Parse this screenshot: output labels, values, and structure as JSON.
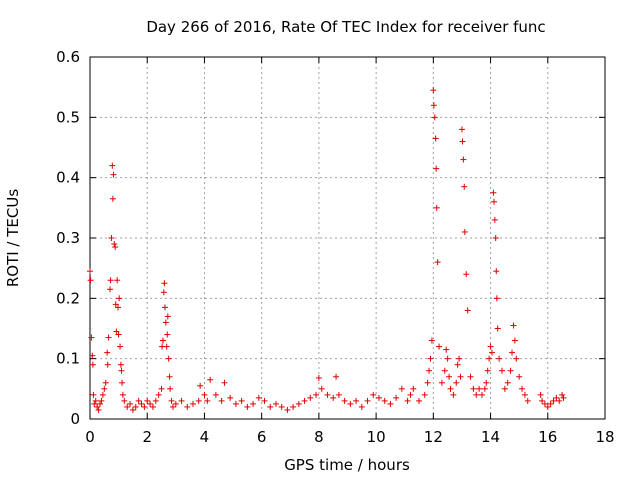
{
  "chart_data": {
    "type": "scatter",
    "title": "Day 266 of 2016, Rate Of TEC Index for receiver func",
    "xlabel": "GPS time / hours",
    "ylabel": "ROTI / TECUs",
    "xlim": [
      0,
      18
    ],
    "ylim": [
      0,
      0.6
    ],
    "xticks": [
      0,
      2,
      4,
      6,
      8,
      10,
      12,
      14,
      16,
      18
    ],
    "xtick_labels": [
      "0",
      "2",
      "4",
      "6",
      "8",
      "10",
      "12",
      "14",
      "16",
      "18"
    ],
    "yticks": [
      0,
      0.1,
      0.2,
      0.3,
      0.4,
      0.5,
      0.6
    ],
    "ytick_labels": [
      "0",
      "0.1",
      "0.2",
      "0.3",
      "0.4",
      "0.5",
      "0.6"
    ],
    "grid": true,
    "marker": "+",
    "color": "#e00000",
    "series": [
      {
        "name": "ROTI",
        "x": [
          0.0,
          0.02,
          0.05,
          0.08,
          0.1,
          0.12,
          0.15,
          0.2,
          0.25,
          0.3,
          0.35,
          0.4,
          0.45,
          0.5,
          0.55,
          0.6,
          0.62,
          0.65,
          0.7,
          0.72,
          0.75,
          0.78,
          0.8,
          0.82,
          0.85,
          0.88,
          0.9,
          0.92,
          0.95,
          0.98,
          1.0,
          1.02,
          1.05,
          1.08,
          1.1,
          1.12,
          1.15,
          1.2,
          1.3,
          1.4,
          1.5,
          1.6,
          1.7,
          1.8,
          1.9,
          2.0,
          2.1,
          2.2,
          2.3,
          2.4,
          2.5,
          2.52,
          2.55,
          2.58,
          2.6,
          2.62,
          2.65,
          2.68,
          2.7,
          2.72,
          2.75,
          2.78,
          2.8,
          2.85,
          2.9,
          3.0,
          3.2,
          3.4,
          3.6,
          3.8,
          3.85,
          4.0,
          4.1,
          4.2,
          4.4,
          4.6,
          4.7,
          4.9,
          5.1,
          5.3,
          5.5,
          5.7,
          5.9,
          6.1,
          6.3,
          6.5,
          6.7,
          6.9,
          7.1,
          7.3,
          7.5,
          7.7,
          7.9,
          8.0,
          8.1,
          8.3,
          8.5,
          8.6,
          8.7,
          8.9,
          9.1,
          9.3,
          9.5,
          9.7,
          9.9,
          10.1,
          10.3,
          10.5,
          10.7,
          10.9,
          11.1,
          11.2,
          11.3,
          11.5,
          11.7,
          11.8,
          11.85,
          11.9,
          11.95,
          12.0,
          12.02,
          12.05,
          12.08,
          12.1,
          12.12,
          12.15,
          12.2,
          12.3,
          12.4,
          12.45,
          12.5,
          12.55,
          12.6,
          12.7,
          12.8,
          12.85,
          12.9,
          12.95,
          13.0,
          13.02,
          13.05,
          13.08,
          13.1,
          13.15,
          13.2,
          13.3,
          13.4,
          13.5,
          13.6,
          13.7,
          13.8,
          13.85,
          13.9,
          13.95,
          14.0,
          14.05,
          14.1,
          14.12,
          14.15,
          14.18,
          14.2,
          14.22,
          14.25,
          14.3,
          14.4,
          14.5,
          14.6,
          14.7,
          14.75,
          14.8,
          14.85,
          14.9,
          15.0,
          15.1,
          15.2,
          15.3,
          15.75,
          15.8,
          15.9,
          16.0,
          16.1,
          16.2,
          16.3,
          16.4,
          16.5,
          16.55
        ],
        "y": [
          0.245,
          0.23,
          0.135,
          0.105,
          0.09,
          0.04,
          0.025,
          0.03,
          0.02,
          0.015,
          0.025,
          0.03,
          0.04,
          0.05,
          0.06,
          0.11,
          0.09,
          0.135,
          0.215,
          0.23,
          0.3,
          0.42,
          0.365,
          0.405,
          0.29,
          0.285,
          0.19,
          0.145,
          0.23,
          0.185,
          0.14,
          0.2,
          0.12,
          0.09,
          0.08,
          0.06,
          0.04,
          0.03,
          0.02,
          0.025,
          0.015,
          0.02,
          0.03,
          0.025,
          0.02,
          0.03,
          0.025,
          0.02,
          0.03,
          0.04,
          0.05,
          0.12,
          0.13,
          0.21,
          0.225,
          0.185,
          0.16,
          0.12,
          0.14,
          0.17,
          0.1,
          0.07,
          0.05,
          0.03,
          0.02,
          0.025,
          0.03,
          0.02,
          0.025,
          0.03,
          0.055,
          0.04,
          0.03,
          0.065,
          0.04,
          0.03,
          0.06,
          0.035,
          0.025,
          0.03,
          0.02,
          0.025,
          0.035,
          0.03,
          0.02,
          0.025,
          0.02,
          0.015,
          0.02,
          0.025,
          0.03,
          0.035,
          0.04,
          0.068,
          0.05,
          0.04,
          0.035,
          0.07,
          0.04,
          0.03,
          0.025,
          0.03,
          0.02,
          0.03,
          0.04,
          0.035,
          0.03,
          0.025,
          0.035,
          0.05,
          0.03,
          0.04,
          0.05,
          0.03,
          0.04,
          0.06,
          0.08,
          0.1,
          0.13,
          0.545,
          0.52,
          0.5,
          0.465,
          0.415,
          0.35,
          0.26,
          0.12,
          0.06,
          0.08,
          0.115,
          0.1,
          0.07,
          0.05,
          0.04,
          0.06,
          0.09,
          0.1,
          0.07,
          0.48,
          0.46,
          0.43,
          0.385,
          0.31,
          0.24,
          0.18,
          0.07,
          0.05,
          0.04,
          0.05,
          0.04,
          0.05,
          0.06,
          0.08,
          0.1,
          0.12,
          0.11,
          0.375,
          0.36,
          0.33,
          0.3,
          0.245,
          0.2,
          0.15,
          0.1,
          0.08,
          0.05,
          0.06,
          0.08,
          0.11,
          0.155,
          0.13,
          0.1,
          0.07,
          0.05,
          0.04,
          0.03,
          0.04,
          0.03,
          0.025,
          0.02,
          0.025,
          0.03,
          0.035,
          0.03,
          0.04,
          0.035
        ]
      }
    ]
  }
}
